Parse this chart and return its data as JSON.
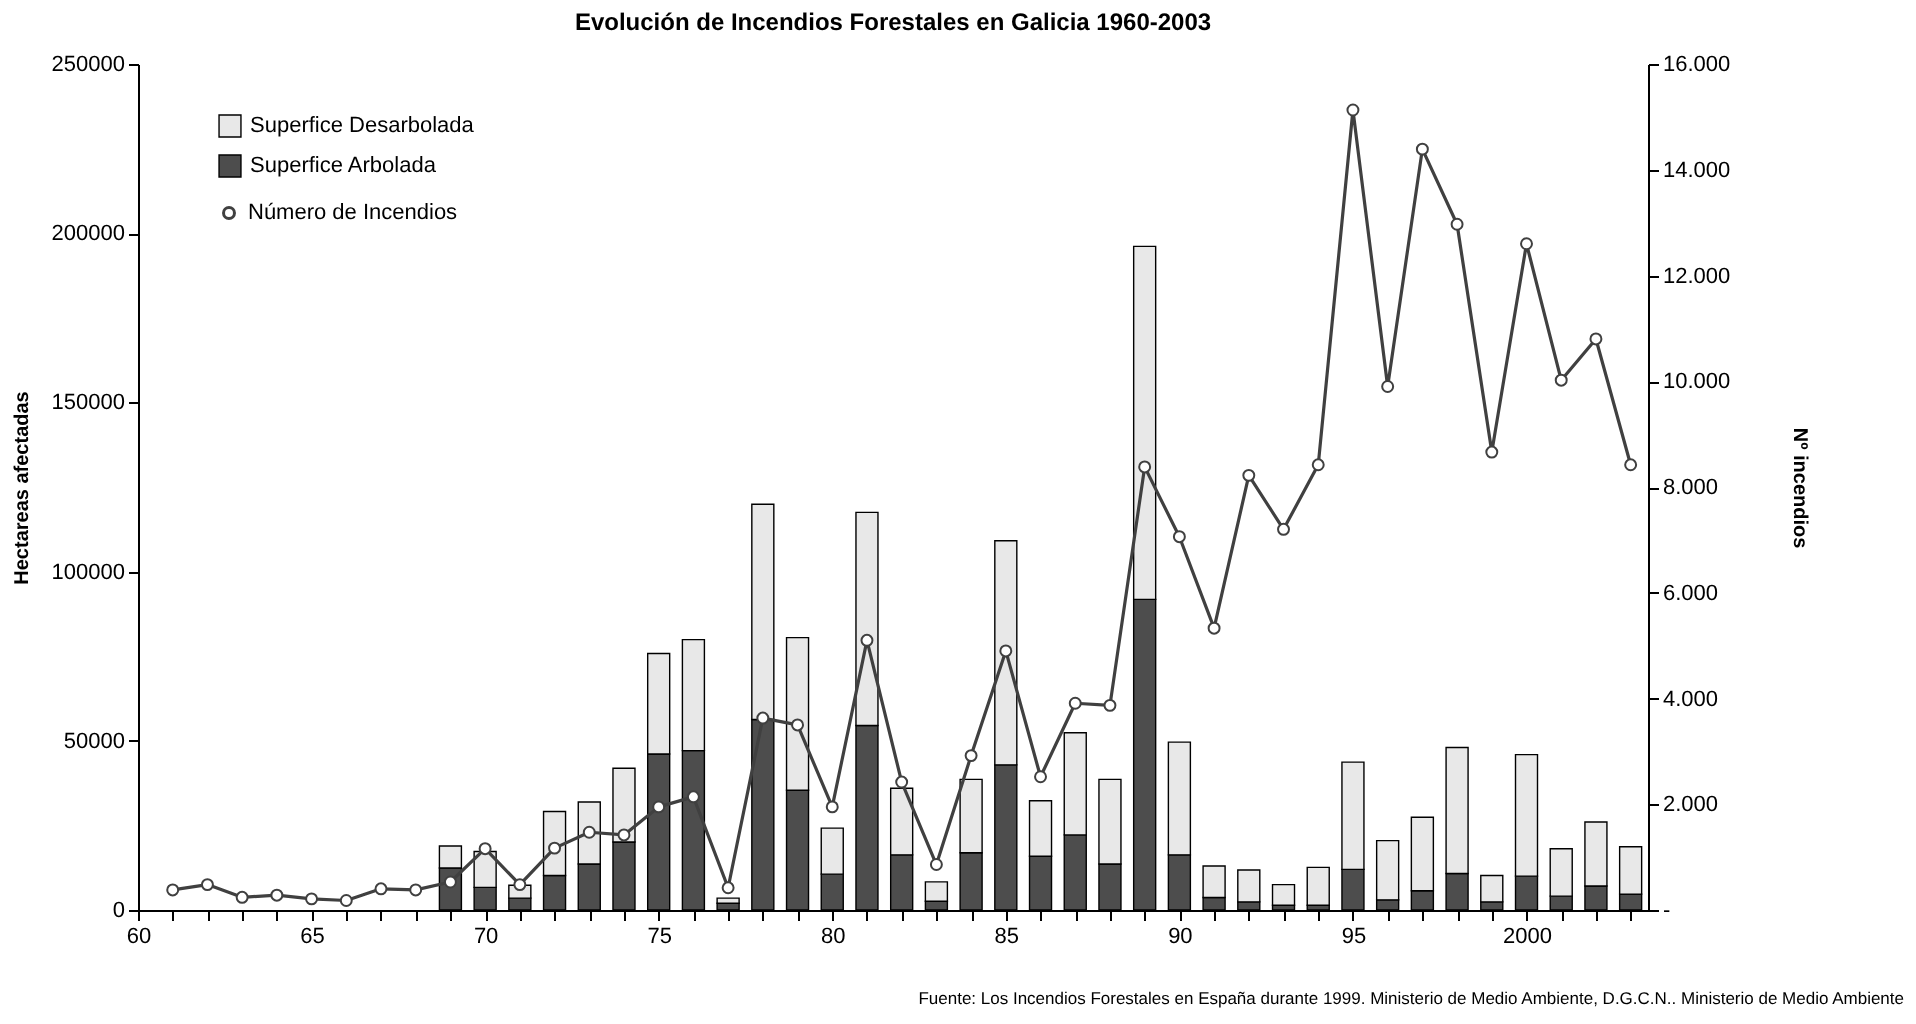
{
  "chart_data": {
    "type": "bar",
    "title": "Evolución de Incendios Forestales en Galicia 1960-2003",
    "ylabel": "Hectareas afectadas",
    "y2label": "Nº incendios",
    "annotations": [
      "Fuente: Los Incendios Forestales en España durante 1999. Ministerio de Medio Ambiente, D.G.C.N.. Ministerio de Medio Ambiente"
    ],
    "x": [
      1961,
      1962,
      1963,
      1964,
      1965,
      1966,
      1967,
      1968,
      1969,
      1970,
      1971,
      1972,
      1973,
      1974,
      1975,
      1976,
      1977,
      1978,
      1979,
      1980,
      1981,
      1982,
      1983,
      1984,
      1985,
      1986,
      1987,
      1988,
      1989,
      1990,
      1991,
      1992,
      1993,
      1994,
      1995,
      1996,
      1997,
      1998,
      1999,
      2000,
      2001,
      2002,
      2003
    ],
    "series": [
      {
        "name": "Superfice Arbolada",
        "color": "#4d4d4d",
        "values": [
          null,
          null,
          null,
          null,
          null,
          null,
          null,
          null,
          12400,
          6700,
          3500,
          10200,
          13600,
          20100,
          46100,
          47100,
          2000,
          56300,
          35400,
          10600,
          54500,
          16300,
          2600,
          16900,
          42900,
          15900,
          22200,
          13600,
          91800,
          16300,
          3700,
          2400,
          1400,
          1400,
          12000,
          3000,
          5700,
          10800,
          2400,
          10000,
          4100,
          7100,
          4700
        ]
      },
      {
        "name": "Superfice Desarbolada",
        "color": "#e8e8e8",
        "values": [
          null,
          null,
          null,
          null,
          null,
          null,
          null,
          null,
          6500,
          10600,
          3800,
          18900,
          18300,
          21800,
          29700,
          32800,
          1500,
          63600,
          45100,
          13600,
          63000,
          19700,
          5700,
          21700,
          66200,
          16400,
          30200,
          25000,
          104300,
          33300,
          9300,
          9400,
          6100,
          11200,
          31700,
          17500,
          21700,
          37200,
          7800,
          35900,
          14000,
          18900,
          14000
        ]
      },
      {
        "name": "Número de Incendios",
        "type": "line",
        "axis": "y2",
        "color": "#404040",
        "marker": "circle",
        "values": [
          380,
          480,
          240,
          280,
          210,
          180,
          400,
          380,
          530,
          1160,
          480,
          1170,
          1470,
          1420,
          1950,
          2140,
          420,
          3630,
          3500,
          1950,
          5100,
          2420,
          860,
          2920,
          4900,
          2520,
          3910,
          3870,
          8380,
          7060,
          5330,
          8220,
          7200,
          8420,
          15130,
          9900,
          14390,
          12970,
          8660,
          12600,
          10020,
          10800,
          8420
        ]
      }
    ],
    "stacked": true,
    "legend": "top left",
    "grid": false,
    "xlim": [
      1960,
      2003.5
    ],
    "xticks": [
      {
        "value": 1960,
        "label": "60"
      },
      {
        "value": 1961,
        "label": null
      },
      {
        "value": 1962,
        "label": null
      },
      {
        "value": 1963,
        "label": null
      },
      {
        "value": 1964,
        "label": null
      },
      {
        "value": 1965,
        "label": "65"
      },
      {
        "value": 1966,
        "label": null
      },
      {
        "value": 1967,
        "label": null
      },
      {
        "value": 1968,
        "label": null
      },
      {
        "value": 1969,
        "label": null
      },
      {
        "value": 1970,
        "label": "70"
      },
      {
        "value": 1971,
        "label": null
      },
      {
        "value": 1972,
        "label": null
      },
      {
        "value": 1973,
        "label": null
      },
      {
        "value": 1974,
        "label": null
      },
      {
        "value": 1975,
        "label": "75"
      },
      {
        "value": 1976,
        "label": null
      },
      {
        "value": 1977,
        "label": null
      },
      {
        "value": 1978,
        "label": null
      },
      {
        "value": 1979,
        "label": null
      },
      {
        "value": 1980,
        "label": "80"
      },
      {
        "value": 1981,
        "label": null
      },
      {
        "value": 1982,
        "label": null
      },
      {
        "value": 1983,
        "label": null
      },
      {
        "value": 1984,
        "label": null
      },
      {
        "value": 1985,
        "label": "85"
      },
      {
        "value": 1986,
        "label": null
      },
      {
        "value": 1987,
        "label": null
      },
      {
        "value": 1988,
        "label": null
      },
      {
        "value": 1989,
        "label": null
      },
      {
        "value": 1990,
        "label": "90"
      },
      {
        "value": 1991,
        "label": null
      },
      {
        "value": 1992,
        "label": null
      },
      {
        "value": 1993,
        "label": null
      },
      {
        "value": 1994,
        "label": null
      },
      {
        "value": 1995,
        "label": "95"
      },
      {
        "value": 1996,
        "label": null
      },
      {
        "value": 1997,
        "label": null
      },
      {
        "value": 1998,
        "label": null
      },
      {
        "value": 1999,
        "label": null
      },
      {
        "value": 2000,
        "label": "2000"
      },
      {
        "value": 2001,
        "label": null
      },
      {
        "value": 2002,
        "label": null
      },
      {
        "value": 2003,
        "label": null
      }
    ],
    "ylim": [
      0,
      250000
    ],
    "yticks": [
      0,
      50000,
      100000,
      150000,
      200000,
      250000
    ],
    "y2lim": [
      0,
      16000
    ],
    "y2ticks": [
      {
        "value": 0,
        "label": "-"
      },
      {
        "value": 2000,
        "label": "2.000"
      },
      {
        "value": 4000,
        "label": "4.000"
      },
      {
        "value": 6000,
        "label": "6.000"
      },
      {
        "value": 8000,
        "label": "8.000"
      },
      {
        "value": 10000,
        "label": "10.000"
      },
      {
        "value": 12000,
        "label": "12.000"
      },
      {
        "value": 14000,
        "label": "14.000"
      },
      {
        "value": 16000,
        "label": "16.000"
      }
    ]
  }
}
